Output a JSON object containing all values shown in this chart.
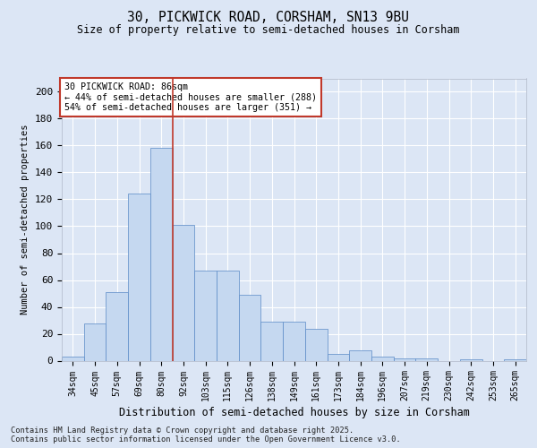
{
  "title1": "30, PICKWICK ROAD, CORSHAM, SN13 9BU",
  "title2": "Size of property relative to semi-detached houses in Corsham",
  "xlabel": "Distribution of semi-detached houses by size in Corsham",
  "ylabel": "Number of semi-detached properties",
  "categories": [
    "34sqm",
    "45sqm",
    "57sqm",
    "69sqm",
    "80sqm",
    "92sqm",
    "103sqm",
    "115sqm",
    "126sqm",
    "138sqm",
    "149sqm",
    "161sqm",
    "173sqm",
    "184sqm",
    "196sqm",
    "207sqm",
    "219sqm",
    "230sqm",
    "242sqm",
    "253sqm",
    "265sqm"
  ],
  "values": [
    3,
    28,
    51,
    124,
    158,
    101,
    67,
    67,
    49,
    29,
    29,
    24,
    5,
    8,
    3,
    2,
    2,
    0,
    1,
    0,
    1
  ],
  "bar_color": "#c5d8f0",
  "bar_edge_color": "#5a8ac6",
  "vline_x_index": 4.5,
  "vline_color": "#c0392b",
  "annotation_title": "30 PICKWICK ROAD: 86sqm",
  "annotation_line1": "← 44% of semi-detached houses are smaller (288)",
  "annotation_line2": "54% of semi-detached houses are larger (351) →",
  "annotation_box_facecolor": "#ffffff",
  "annotation_box_edgecolor": "#c0392b",
  "ylim": [
    0,
    210
  ],
  "yticks": [
    0,
    20,
    40,
    60,
    80,
    100,
    120,
    140,
    160,
    180,
    200
  ],
  "footer": "Contains HM Land Registry data © Crown copyright and database right 2025.\nContains public sector information licensed under the Open Government Licence v3.0.",
  "background_color": "#dce6f5",
  "grid_color": "#ffffff"
}
